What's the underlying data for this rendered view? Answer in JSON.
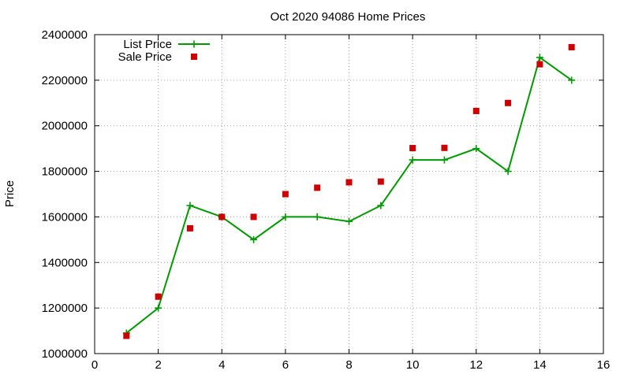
{
  "chart_data": {
    "type": "line",
    "title": "Oct 2020 94086 Home Prices",
    "xlabel": "",
    "ylabel": "Price",
    "xlim": [
      0,
      16
    ],
    "ylim": [
      1000000,
      2400000
    ],
    "xticks": [
      0,
      2,
      4,
      6,
      8,
      10,
      12,
      14,
      16
    ],
    "yticks": [
      1000000,
      1200000,
      1400000,
      1600000,
      1800000,
      2000000,
      2200000,
      2400000
    ],
    "grid": true,
    "legend_position": "top-left",
    "x": [
      1,
      2,
      3,
      4,
      5,
      6,
      7,
      8,
      9,
      10,
      11,
      12,
      13,
      14,
      15
    ],
    "series": [
      {
        "name": "List Price",
        "style": "lines+points",
        "color": "#009900",
        "values": [
          1090000,
          1200000,
          1650000,
          1600000,
          1500000,
          1600000,
          1600000,
          1580000,
          1650000,
          1850000,
          1850000,
          1900000,
          1800000,
          2300000,
          2200000
        ]
      },
      {
        "name": "Sale Price",
        "style": "points",
        "color": "#cc0000",
        "values": [
          1078000,
          1250000,
          1550000,
          1600000,
          1600000,
          1700000,
          1728000,
          1752000,
          1755000,
          1902000,
          1903000,
          2065000,
          2100000,
          2270000,
          2345000
        ]
      }
    ]
  }
}
